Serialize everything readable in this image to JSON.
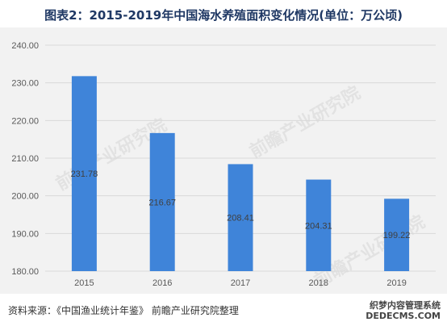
{
  "chart_data": {
    "type": "bar",
    "title": "图表2：2015-2019年中国海水养殖面积变化情况(单位：万公顷)",
    "categories": [
      "2015",
      "2016",
      "2017",
      "2018",
      "2019"
    ],
    "values": [
      231.78,
      216.67,
      208.41,
      204.31,
      199.22
    ],
    "data_labels": [
      "231.78",
      "216.67",
      "208.41",
      "204.31",
      "199.22"
    ],
    "ylim": [
      180,
      240
    ],
    "yticks": [
      "180.00",
      "190.00",
      "200.00",
      "210.00",
      "220.00",
      "230.00",
      "240.00"
    ],
    "bar_color": "#3f84d9",
    "grid": true,
    "legend": "none"
  },
  "source": "资料来源：《中国渔业统计年鉴》 前瞻产业研究院整理",
  "watermark": "前瞻产业研究院",
  "corner_badge": [
    "织梦内容管理系统",
    "DEDECMS.COM"
  ]
}
